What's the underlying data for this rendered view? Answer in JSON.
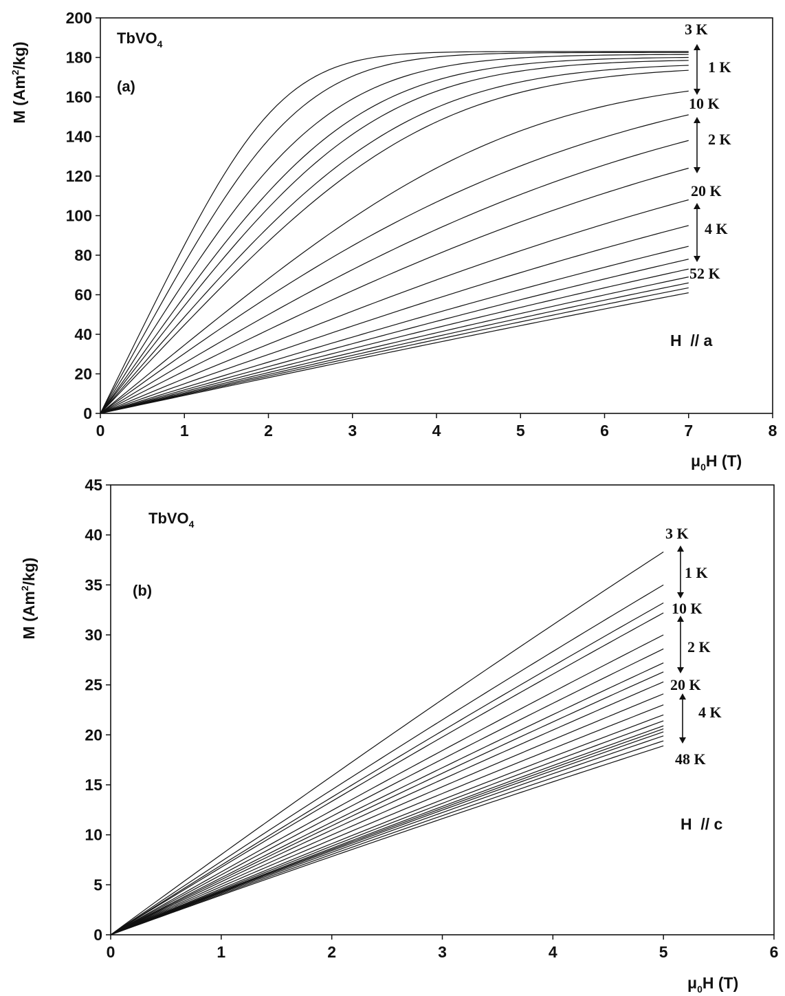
{
  "chart_data": [
    {
      "type": "line",
      "panel": "(a)",
      "title": "TbVO4",
      "title_main": "TbVO",
      "title_sub": "4",
      "xlabel_pre": "μ",
      "xlabel_sub": "0",
      "xlabel_post": "H (T)",
      "ylabel_pre": "M (Am",
      "ylabel_sup": "2",
      "ylabel_post": "/kg)",
      "xlim": [
        0,
        8
      ],
      "ylim": [
        0,
        200
      ],
      "xticks": [
        "0",
        "1",
        "2",
        "3",
        "4",
        "5",
        "6",
        "7",
        "8"
      ],
      "yticks": [
        "0",
        "20",
        "40",
        "60",
        "80",
        "100",
        "120",
        "140",
        "160",
        "180",
        "200"
      ],
      "field_label": "H  // a",
      "temperature_labels": [
        "3 K",
        "10 K",
        "20 K",
        "52 K"
      ],
      "step_labels": [
        "1 K",
        "2 K",
        "4 K"
      ],
      "x_max": 7,
      "curves": [
        {
          "T": 3,
          "y_end": 183.0
        },
        {
          "T": 4,
          "y_end": 182.5
        },
        {
          "T": 5,
          "y_end": 181.5
        },
        {
          "T": 6,
          "y_end": 180.0
        },
        {
          "T": 7,
          "y_end": 178.5
        },
        {
          "T": 8,
          "y_end": 176.0
        },
        {
          "T": 9,
          "y_end": 173.5
        },
        {
          "T": 10,
          "y_end": 163.0
        },
        {
          "T": 12,
          "y_end": 151.0
        },
        {
          "T": 14,
          "y_end": 138.0
        },
        {
          "T": 16,
          "y_end": 124.0
        },
        {
          "T": 20,
          "y_end": 108.0
        },
        {
          "T": 24,
          "y_end": 95.0
        },
        {
          "T": 28,
          "y_end": 84.5
        },
        {
          "T": 32,
          "y_end": 78.0
        },
        {
          "T": 36,
          "y_end": 73.0
        },
        {
          "T": 40,
          "y_end": 69.0
        },
        {
          "T": 44,
          "y_end": 66.0
        },
        {
          "T": 48,
          "y_end": 63.5
        },
        {
          "T": 52,
          "y_end": 61.0
        }
      ]
    },
    {
      "type": "line",
      "panel": "(b)",
      "title": "TbVO4",
      "title_main": "TbVO",
      "title_sub": "4",
      "xlabel_pre": "μ",
      "xlabel_sub": "0",
      "xlabel_post": "H (T)",
      "ylabel_pre": "M (Am",
      "ylabel_sup": "2",
      "ylabel_post": "/kg)",
      "xlim": [
        0,
        6
      ],
      "ylim": [
        0,
        45
      ],
      "xticks": [
        "0",
        "1",
        "2",
        "3",
        "4",
        "5",
        "6"
      ],
      "yticks": [
        "0",
        "5",
        "10",
        "15",
        "20",
        "25",
        "30",
        "35",
        "40",
        "45"
      ],
      "field_label": "H  // c",
      "temperature_labels": [
        "3 K",
        "10 K",
        "20 K",
        "48 K"
      ],
      "step_labels": [
        "1 K",
        "2 K",
        "4 K"
      ],
      "x_max": 5,
      "curves": [
        {
          "T": 3,
          "y_end": 38.3
        },
        {
          "T": 4,
          "y_end": 35.0
        },
        {
          "T": 5,
          "y_end": 33.2
        },
        {
          "T": 6,
          "y_end": 32.2
        },
        {
          "T": 7,
          "y_end": 30.0
        },
        {
          "T": 8,
          "y_end": 28.6
        },
        {
          "T": 9,
          "y_end": 27.2
        },
        {
          "T": 10,
          "y_end": 26.3
        },
        {
          "T": 12,
          "y_end": 25.3
        },
        {
          "T": 14,
          "y_end": 24.1
        },
        {
          "T": 16,
          "y_end": 23.0
        },
        {
          "T": 20,
          "y_end": 22.0
        },
        {
          "T": 24,
          "y_end": 21.4
        },
        {
          "T": 28,
          "y_end": 20.9
        },
        {
          "T": 32,
          "y_end": 20.6
        },
        {
          "T": 36,
          "y_end": 20.3
        },
        {
          "T": 40,
          "y_end": 19.9
        },
        {
          "T": 44,
          "y_end": 19.4
        },
        {
          "T": 48,
          "y_end": 18.9
        }
      ]
    }
  ]
}
